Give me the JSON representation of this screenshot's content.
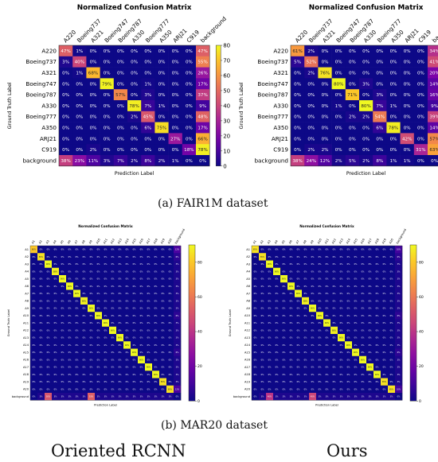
{
  "captions": {
    "a": "(a)  FAIR1M dataset",
    "b": "(b)  MAR20 dataset"
  },
  "methods": [
    "Oriented RCNN",
    "Ours"
  ],
  "colorbar": {
    "fair_ticks": [
      0,
      10,
      20,
      30,
      40,
      50,
      60,
      70,
      80
    ],
    "mar_left_ticks": [
      0,
      20,
      40,
      60,
      80
    ],
    "mar_right_ticks": [
      0,
      20,
      40,
      60,
      80
    ]
  },
  "chart_data": [
    {
      "type": "heatmap",
      "panel": "fair1m-oriented-rcnn",
      "title": "Normalized Confusion Matrix",
      "xlabel": "Prediction Label",
      "ylabel": "Ground Truth Label",
      "vmax": 80,
      "labels": [
        "A220",
        "Boeing737",
        "A321",
        "Boeing747",
        "Boeing787",
        "A330",
        "Boeing777",
        "A350",
        "ARJ21",
        "C919",
        "background"
      ],
      "matrix": [
        [
          47,
          1,
          0,
          0,
          0,
          0,
          0,
          0,
          0,
          0,
          47
        ],
        [
          3,
          40,
          0,
          0,
          0,
          0,
          0,
          0,
          0,
          0,
          55
        ],
        [
          0,
          1,
          68,
          0,
          0,
          0,
          0,
          0,
          0,
          0,
          26
        ],
        [
          0,
          0,
          0,
          79,
          0,
          0,
          1,
          0,
          0,
          0,
          17
        ],
        [
          0,
          0,
          0,
          0,
          57,
          0,
          3,
          0,
          0,
          0,
          37
        ],
        [
          0,
          0,
          0,
          0,
          0,
          78,
          7,
          1,
          0,
          0,
          9
        ],
        [
          0,
          0,
          0,
          0,
          0,
          2,
          45,
          0,
          0,
          0,
          48
        ],
        [
          0,
          0,
          0,
          0,
          0,
          0,
          6,
          75,
          0,
          0,
          17
        ],
        [
          0,
          0,
          0,
          0,
          0,
          0,
          0,
          0,
          27,
          0,
          66
        ],
        [
          0,
          0,
          2,
          0,
          0,
          0,
          0,
          0,
          0,
          18,
          78
        ],
        [
          38,
          23,
          11,
          3,
          7,
          2,
          8,
          2,
          1,
          0,
          0
        ]
      ]
    },
    {
      "type": "heatmap",
      "panel": "fair1m-ours",
      "title": "Normalized Confusion Matrix",
      "xlabel": "Prediction Label",
      "ylabel": "Ground Truth Label",
      "vmax": 80,
      "labels": [
        "A220",
        "Boeing737",
        "A321",
        "Boeing747",
        "Boeing787",
        "A330",
        "Boeing777",
        "A350",
        "ARJ21",
        "C919",
        "background"
      ],
      "matrix": [
        [
          61,
          2,
          0,
          0,
          0,
          0,
          0,
          0,
          0,
          0,
          34
        ],
        [
          5,
          52,
          0,
          0,
          0,
          0,
          0,
          0,
          0,
          0,
          41
        ],
        [
          0,
          2,
          76,
          0,
          0,
          0,
          0,
          0,
          0,
          0,
          20
        ],
        [
          0,
          0,
          0,
          80,
          0,
          3,
          0,
          0,
          0,
          0,
          14
        ],
        [
          0,
          0,
          0,
          0,
          71,
          0,
          3,
          0,
          0,
          0,
          16
        ],
        [
          0,
          0,
          0,
          1,
          0,
          80,
          7,
          1,
          0,
          0,
          9
        ],
        [
          0,
          0,
          0,
          0,
          2,
          2,
          54,
          0,
          0,
          0,
          39
        ],
        [
          0,
          0,
          0,
          0,
          0,
          0,
          6,
          78,
          0,
          0,
          14
        ],
        [
          0,
          0,
          0,
          0,
          0,
          0,
          0,
          0,
          42,
          0,
          57
        ],
        [
          0,
          2,
          2,
          0,
          0,
          0,
          0,
          0,
          0,
          31,
          63
        ],
        [
          38,
          24,
          12,
          2,
          5,
          2,
          8,
          1,
          1,
          0,
          0
        ]
      ]
    },
    {
      "type": "heatmap",
      "panel": "mar20-oriented-rcnn",
      "title": "Normalized Confusion Matrix",
      "xlabel": "Prediction Label",
      "ylabel": "Ground Truth Label",
      "vmax": 90,
      "labels": [
        "A1",
        "A2",
        "A3",
        "A4",
        "A5",
        "A6",
        "A7",
        "A8",
        "A9",
        "A10",
        "A11",
        "A12",
        "A13",
        "A14",
        "A15",
        "A16",
        "A17",
        "A18",
        "A19",
        "A20",
        "background"
      ],
      "diagonal": [
        80,
        85,
        90,
        88,
        90,
        90,
        90,
        88,
        90,
        90,
        90,
        90,
        90,
        90,
        90,
        90,
        90,
        90,
        85,
        85,
        0
      ],
      "background_column": [
        12,
        6,
        3,
        3,
        3,
        3,
        3,
        3,
        3,
        6,
        3,
        3,
        3,
        3,
        6,
        3,
        3,
        3,
        3,
        12,
        0
      ],
      "background_row": [
        0,
        3,
        50,
        3,
        3,
        3,
        3,
        3,
        53,
        3,
        3,
        3,
        3,
        3,
        3,
        3,
        3,
        3,
        3,
        3,
        0
      ]
    },
    {
      "type": "heatmap",
      "panel": "mar20-ours",
      "title": "Normalized Confusion Matrix",
      "xlabel": "Prediction Label",
      "ylabel": "Ground Truth Label",
      "vmax": 90,
      "labels": [
        "A1",
        "A2",
        "A3",
        "A4",
        "A5",
        "A6",
        "A7",
        "A8",
        "A9",
        "A10",
        "A11",
        "A12",
        "A13",
        "A14",
        "A15",
        "A16",
        "A17",
        "A18",
        "A19",
        "A20",
        "background"
      ],
      "diagonal": [
        85,
        85,
        90,
        90,
        90,
        90,
        90,
        88,
        90,
        90,
        90,
        88,
        90,
        90,
        90,
        90,
        90,
        90,
        85,
        85,
        0
      ],
      "background_column": [
        10,
        6,
        3,
        3,
        3,
        3,
        3,
        3,
        3,
        6,
        3,
        3,
        3,
        3,
        6,
        3,
        3,
        3,
        3,
        10,
        0
      ],
      "background_row": [
        0,
        3,
        40,
        3,
        3,
        3,
        3,
        3,
        45,
        3,
        3,
        3,
        3,
        3,
        3,
        3,
        3,
        3,
        3,
        3,
        0
      ]
    }
  ]
}
